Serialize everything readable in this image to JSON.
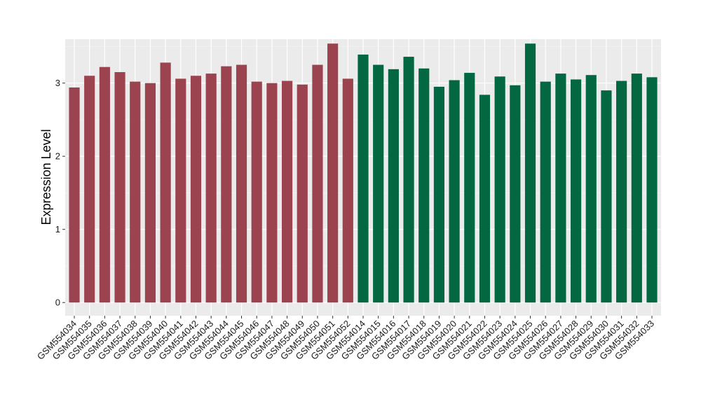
{
  "chart_data": {
    "type": "bar",
    "xlabel": "",
    "ylabel": "Expression Level",
    "ylim": [
      -0.18,
      3.6
    ],
    "yticks": [
      0,
      1,
      2,
      3
    ],
    "grid": true,
    "panel_background": "#ebebeb",
    "categories": [
      "GSM554034",
      "GSM554035",
      "GSM554036",
      "GSM554037",
      "GSM554038",
      "GSM554039",
      "GSM554040",
      "GSM554041",
      "GSM554042",
      "GSM554043",
      "GSM554044",
      "GSM554045",
      "GSM554046",
      "GSM554047",
      "GSM554048",
      "GSM554049",
      "GSM554050",
      "GSM554051",
      "GSM554052",
      "GSM554014",
      "GSM554015",
      "GSM554016",
      "GSM554017",
      "GSM554018",
      "GSM554019",
      "GSM554020",
      "GSM554021",
      "GSM554022",
      "GSM554023",
      "GSM554024",
      "GSM554025",
      "GSM554026",
      "GSM554027",
      "GSM554028",
      "GSM554029",
      "GSM554030",
      "GSM554031",
      "GSM554032",
      "GSM554033"
    ],
    "values": [
      2.94,
      3.1,
      3.22,
      3.15,
      3.02,
      3.0,
      3.28,
      3.06,
      3.1,
      3.13,
      3.23,
      3.25,
      3.02,
      3.0,
      3.03,
      2.98,
      3.25,
      3.54,
      3.06,
      3.39,
      3.25,
      3.19,
      3.36,
      3.2,
      2.95,
      3.04,
      3.14,
      2.84,
      3.09,
      2.97,
      3.54,
      3.02,
      3.13,
      3.05,
      3.11,
      2.9,
      3.03,
      3.13,
      3.08
    ],
    "groups": [
      {
        "color": "#9b4450",
        "count": 19
      },
      {
        "color": "#036841",
        "count": 20
      }
    ]
  }
}
